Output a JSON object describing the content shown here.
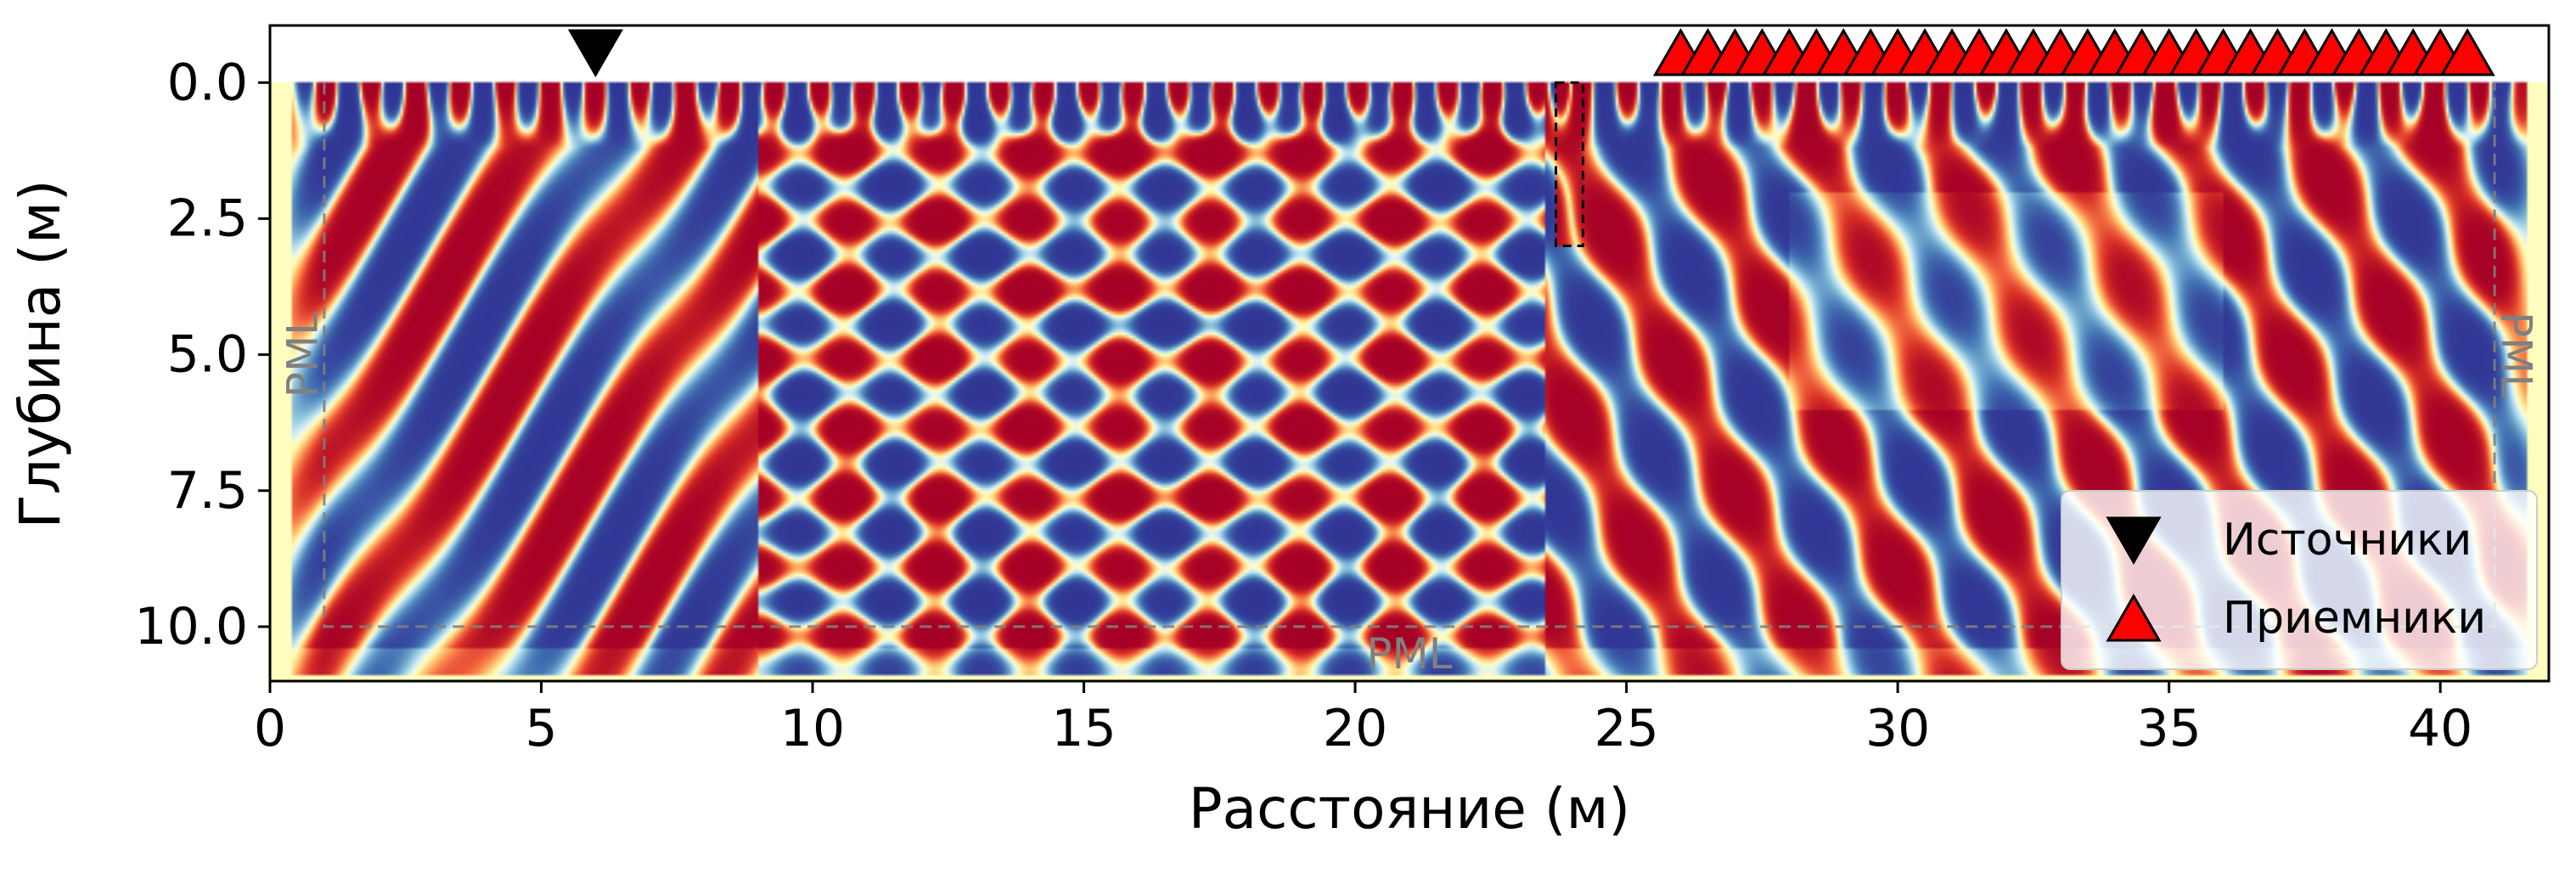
{
  "chart_data": {
    "type": "heatmap",
    "title": "",
    "xlabel": "Расстояние (м)",
    "ylabel": "Глубина (м)",
    "xlim": [
      0,
      42
    ],
    "ylim": [
      11,
      -1.05
    ],
    "x_ticks": [
      0,
      5,
      10,
      15,
      20,
      25,
      30,
      35,
      40
    ],
    "x_tick_labels": [
      "0",
      "5",
      "10",
      "15",
      "20",
      "25",
      "30",
      "35",
      "40"
    ],
    "y_ticks": [
      0.0,
      2.5,
      5.0,
      7.5,
      10.0
    ],
    "y_tick_labels": [
      "0.0",
      "2.5",
      "5.0",
      "7.5",
      "10.0"
    ],
    "grid": false,
    "colormap": "RdYlBu",
    "colors": {
      "red": "#a50026",
      "blue": "#313695",
      "neutral": "#fffebe",
      "source_marker": "#000000",
      "receiver_marker": "#ff0000",
      "pml_boundary": "#808080",
      "anomaly_box": "#000000"
    },
    "wavefield_domain": {
      "x": [
        0.4,
        41.6
      ],
      "depth": [
        0,
        10.9
      ]
    },
    "pml": {
      "label": "PML",
      "x_left": 1.0,
      "x_right": 41.0,
      "depth_bottom": 10.0,
      "annotations": [
        {
          "text": "PML",
          "x": 0.6,
          "depth": 5.0,
          "rotation": -90
        },
        {
          "text": "PML",
          "x": 41.4,
          "depth": 5.0,
          "rotation": 90
        },
        {
          "text": "PML",
          "x": 21.0,
          "depth": 10.5,
          "rotation": 0
        }
      ]
    },
    "anomaly_box": {
      "x": [
        23.7,
        24.2
      ],
      "depth": [
        0,
        3.0
      ]
    },
    "sources": {
      "name": "Источники",
      "marker": "triangle-down",
      "x": [
        6.0
      ],
      "depth": -0.55
    },
    "receivers": {
      "name": "Приемники",
      "marker": "triangle-up",
      "x_start": 26.0,
      "x_end": 40.5,
      "count": 30,
      "depth": -0.55
    },
    "legend": {
      "placement": "lower-right",
      "entries": [
        "Источники",
        "Приемники"
      ]
    }
  }
}
